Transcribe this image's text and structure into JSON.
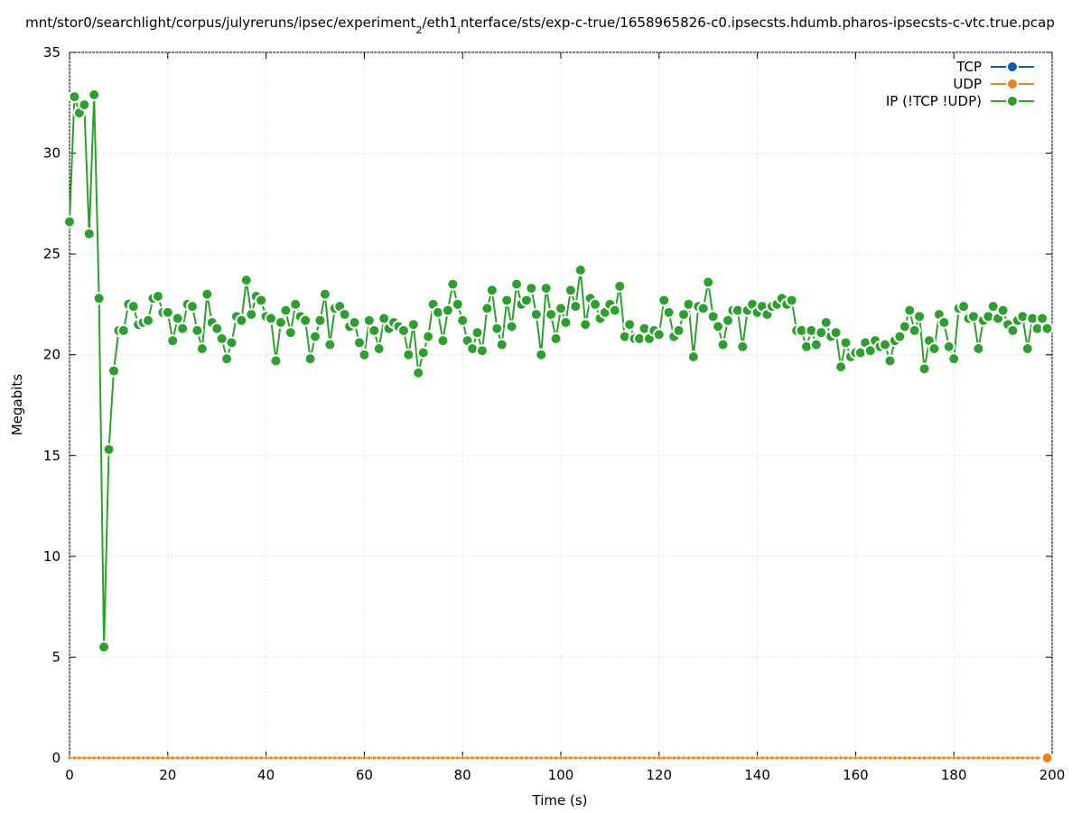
{
  "chart_data": {
    "type": "line",
    "title": [
      "mnt/stor0/searchlight/corpus/julyreruns/ipsec/experiment",
      "2",
      "/eth1",
      "i",
      "nterface/sts/exp-c-true/1658965826-c0.ipsecsts.hdumb.pharos-ipsecsts-c-vtc.true.pcap"
    ],
    "x_label": "Time (s)",
    "y_label": "Megabits",
    "xlim": [
      0,
      200
    ],
    "ylim": [
      0,
      35
    ],
    "xticks": [
      0,
      20,
      40,
      60,
      80,
      100,
      120,
      140,
      160,
      180,
      200
    ],
    "yticks": [
      0,
      5,
      10,
      15,
      20,
      25,
      30,
      35
    ],
    "grid": true,
    "legend": "top-right",
    "x": [
      0,
      1,
      2,
      3,
      4,
      5,
      6,
      7,
      8,
      9,
      10,
      11,
      12,
      13,
      14,
      15,
      16,
      17,
      18,
      19,
      20,
      21,
      22,
      23,
      24,
      25,
      26,
      27,
      28,
      29,
      30,
      31,
      32,
      33,
      34,
      35,
      36,
      37,
      38,
      39,
      40,
      41,
      42,
      43,
      44,
      45,
      46,
      47,
      48,
      49,
      50,
      51,
      52,
      53,
      54,
      55,
      56,
      57,
      58,
      59,
      60,
      61,
      62,
      63,
      64,
      65,
      66,
      67,
      68,
      69,
      70,
      71,
      72,
      73,
      74,
      75,
      76,
      77,
      78,
      79,
      80,
      81,
      82,
      83,
      84,
      85,
      86,
      87,
      88,
      89,
      90,
      91,
      92,
      93,
      94,
      95,
      96,
      97,
      98,
      99,
      100,
      101,
      102,
      103,
      104,
      105,
      106,
      107,
      108,
      109,
      110,
      111,
      112,
      113,
      114,
      115,
      116,
      117,
      118,
      119,
      120,
      121,
      122,
      123,
      124,
      125,
      126,
      127,
      128,
      129,
      130,
      131,
      132,
      133,
      134,
      135,
      136,
      137,
      138,
      139,
      140,
      141,
      142,
      143,
      144,
      145,
      146,
      147,
      148,
      149,
      150,
      151,
      152,
      153,
      154,
      155,
      156,
      157,
      158,
      159,
      160,
      161,
      162,
      163,
      164,
      165,
      166,
      167,
      168,
      169,
      170,
      171,
      172,
      173,
      174,
      175,
      176,
      177,
      178,
      179,
      180,
      181,
      182,
      183,
      184,
      185,
      186,
      187,
      188,
      189,
      190,
      191,
      192,
      193,
      194,
      195,
      196,
      197,
      198,
      199
    ],
    "series": [
      {
        "name": "TCP",
        "color": "#0060ad",
        "values": [
          0,
          0,
          0,
          0,
          0,
          0,
          0,
          0,
          0,
          0,
          0,
          0,
          0,
          0,
          0,
          0,
          0,
          0,
          0,
          0,
          0,
          0,
          0,
          0,
          0,
          0,
          0,
          0,
          0,
          0,
          0,
          0,
          0,
          0,
          0,
          0,
          0,
          0,
          0,
          0,
          0,
          0,
          0,
          0,
          0,
          0,
          0,
          0,
          0,
          0,
          0,
          0,
          0,
          0,
          0,
          0,
          0,
          0,
          0,
          0,
          0,
          0,
          0,
          0,
          0,
          0,
          0,
          0,
          0,
          0,
          0,
          0,
          0,
          0,
          0,
          0,
          0,
          0,
          0,
          0,
          0,
          0,
          0,
          0,
          0,
          0,
          0,
          0,
          0,
          0,
          0,
          0,
          0,
          0,
          0,
          0,
          0,
          0,
          0,
          0,
          0,
          0,
          0,
          0,
          0,
          0,
          0,
          0,
          0,
          0,
          0,
          0,
          0,
          0,
          0,
          0,
          0,
          0,
          0,
          0,
          0,
          0,
          0,
          0,
          0,
          0,
          0,
          0,
          0,
          0,
          0,
          0,
          0,
          0,
          0,
          0,
          0,
          0,
          0,
          0,
          0,
          0,
          0,
          0,
          0,
          0,
          0,
          0,
          0,
          0,
          0,
          0,
          0,
          0,
          0,
          0,
          0,
          0,
          0,
          0,
          0,
          0,
          0,
          0,
          0,
          0,
          0,
          0,
          0,
          0,
          0,
          0,
          0,
          0,
          0,
          0,
          0,
          0,
          0,
          0,
          0,
          0,
          0,
          0,
          0,
          0,
          0,
          0,
          0,
          0,
          0,
          0,
          0,
          0,
          0,
          0,
          0,
          0,
          0,
          0
        ]
      },
      {
        "name": "UDP",
        "color": "#f07f1a",
        "values": [
          0,
          0,
          0,
          0,
          0,
          0,
          0,
          0,
          0,
          0,
          0,
          0,
          0,
          0,
          0,
          0,
          0,
          0,
          0,
          0,
          0,
          0,
          0,
          0,
          0,
          0,
          0,
          0,
          0,
          0,
          0,
          0,
          0,
          0,
          0,
          0,
          0,
          0,
          0,
          0,
          0,
          0,
          0,
          0,
          0,
          0,
          0,
          0,
          0,
          0,
          0,
          0,
          0,
          0,
          0,
          0,
          0,
          0,
          0,
          0,
          0,
          0,
          0,
          0,
          0,
          0,
          0,
          0,
          0,
          0,
          0,
          0,
          0,
          0,
          0,
          0,
          0,
          0,
          0,
          0,
          0,
          0,
          0,
          0,
          0,
          0,
          0,
          0,
          0,
          0,
          0,
          0,
          0,
          0,
          0,
          0,
          0,
          0,
          0,
          0,
          0,
          0,
          0,
          0,
          0,
          0,
          0,
          0,
          0,
          0,
          0,
          0,
          0,
          0,
          0,
          0,
          0,
          0,
          0,
          0,
          0,
          0,
          0,
          0,
          0,
          0,
          0,
          0,
          0,
          0,
          0,
          0,
          0,
          0,
          0,
          0,
          0,
          0,
          0,
          0,
          0,
          0,
          0,
          0,
          0,
          0,
          0,
          0,
          0,
          0,
          0,
          0,
          0,
          0,
          0,
          0,
          0,
          0,
          0,
          0,
          0,
          0,
          0,
          0,
          0,
          0,
          0,
          0,
          0,
          0,
          0,
          0,
          0,
          0,
          0,
          0,
          0,
          0,
          0,
          0,
          0,
          0,
          0,
          0,
          0,
          0,
          0,
          0,
          0,
          0,
          0,
          0,
          0,
          0,
          0,
          0,
          0,
          0,
          0,
          0
        ]
      },
      {
        "name": "IP (!TCP  !UDP)",
        "color": "#2ca02c",
        "values": [
          26.6,
          32.8,
          32.0,
          32.4,
          26.0,
          32.9,
          22.8,
          5.5,
          15.3,
          19.2,
          21.2,
          21.2,
          22.5,
          22.4,
          21.5,
          21.6,
          21.7,
          22.8,
          22.9,
          22.1,
          22.1,
          20.7,
          21.8,
          21.3,
          22.5,
          22.4,
          21.2,
          20.3,
          23.0,
          21.6,
          21.3,
          20.8,
          19.8,
          20.6,
          21.9,
          21.7,
          23.7,
          22.0,
          22.9,
          22.7,
          21.9,
          21.8,
          19.7,
          21.6,
          22.2,
          21.1,
          22.5,
          21.9,
          21.7,
          19.8,
          20.9,
          21.7,
          23.0,
          20.5,
          22.3,
          22.4,
          22.0,
          21.4,
          21.6,
          20.6,
          20.0,
          21.7,
          21.2,
          20.3,
          21.8,
          21.3,
          21.6,
          21.4,
          21.2,
          20.0,
          21.5,
          19.1,
          20.1,
          20.9,
          22.5,
          22.1,
          20.7,
          22.2,
          23.5,
          22.5,
          21.7,
          20.7,
          20.3,
          21.1,
          20.2,
          22.3,
          23.2,
          21.3,
          20.5,
          22.7,
          21.4,
          23.5,
          22.5,
          22.7,
          23.3,
          22.0,
          20.0,
          23.3,
          22.0,
          20.8,
          22.3,
          21.6,
          23.2,
          22.4,
          24.2,
          21.5,
          22.8,
          22.5,
          21.8,
          22.1,
          22.5,
          22.2,
          23.4,
          20.9,
          21.5,
          20.8,
          20.8,
          21.3,
          20.8,
          21.2,
          21.0,
          22.7,
          22.1,
          20.9,
          21.2,
          22.0,
          22.5,
          19.9,
          22.4,
          22.3,
          23.6,
          21.9,
          21.4,
          20.5,
          21.7,
          22.2,
          22.2,
          20.4,
          22.2,
          22.5,
          22.1,
          22.4,
          22.0,
          22.4,
          22.5,
          22.8,
          22.5,
          22.7,
          21.2,
          21.2,
          20.4,
          21.2,
          20.5,
          21.1,
          21.6,
          20.9,
          21.1,
          19.4,
          20.6,
          19.9,
          20.1,
          20.1,
          20.6,
          20.2,
          20.7,
          20.4,
          20.5,
          19.7,
          20.7,
          20.9,
          21.4,
          22.2,
          21.2,
          21.9,
          19.3,
          20.7,
          20.3,
          22.0,
          21.6,
          20.4,
          19.8,
          22.3,
          22.4,
          21.8,
          21.9,
          20.3,
          21.7,
          21.9,
          22.4,
          21.8,
          22.2,
          21.5,
          21.2,
          21.7,
          21.9,
          20.3,
          21.8,
          21.3,
          21.8,
          21.3
        ]
      }
    ]
  }
}
